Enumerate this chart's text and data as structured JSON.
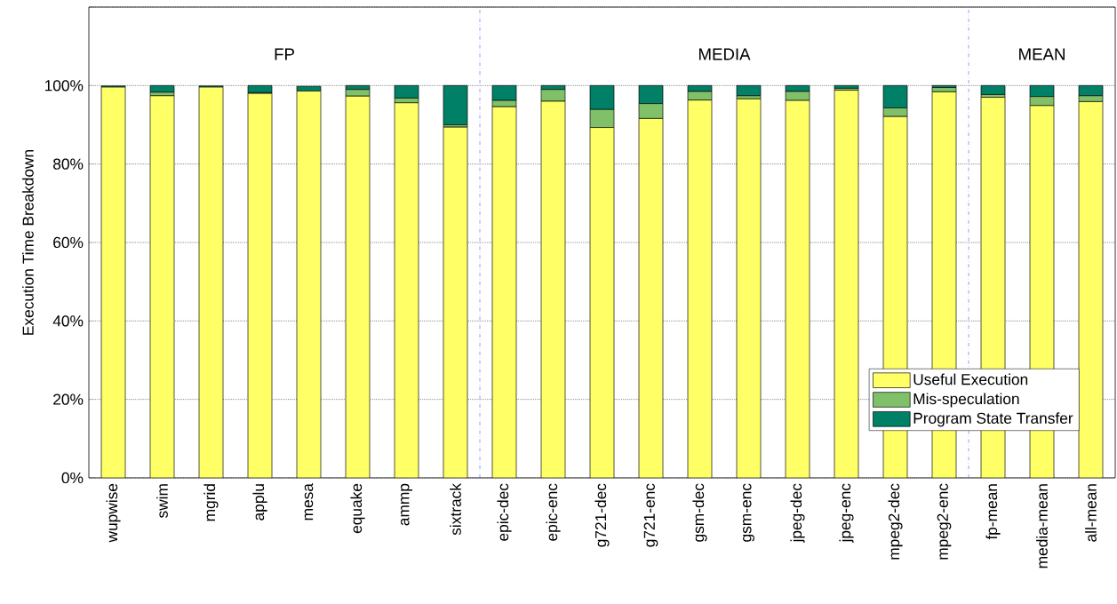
{
  "chart_data": {
    "type": "bar",
    "stacked": true,
    "ylabel": "Execution Time Breakdown",
    "categories": [
      "wupwise",
      "swim",
      "mgrid",
      "applu",
      "mesa",
      "equake",
      "ammp",
      "sixtrack",
      "epic-dec",
      "epic-enc",
      "g721-dec",
      "g721-enc",
      "gsm-dec",
      "gsm-enc",
      "jpeg-dec",
      "jpeg-enc",
      "mpeg2-dec",
      "mpeg2-enc",
      "fp-mean",
      "media-mean",
      "all-mean"
    ],
    "series": [
      {
        "name": "Useful Execution",
        "color": "#ffff66",
        "values": [
          99.6,
          97.4,
          99.6,
          98.0,
          98.6,
          97.3,
          95.6,
          89.4,
          94.6,
          96.0,
          89.3,
          91.6,
          96.3,
          96.6,
          96.2,
          98.8,
          92.1,
          98.4,
          97.0,
          94.9,
          95.9
        ]
      },
      {
        "name": "Mis-speculation",
        "color": "#80c068",
        "values": [
          null,
          0.9,
          null,
          0.2,
          null,
          1.7,
          1.2,
          0.6,
          1.6,
          3.0,
          4.6,
          3.8,
          2.2,
          0.8,
          2.3,
          0.5,
          2.2,
          1.1,
          0.7,
          2.3,
          1.5
        ]
      },
      {
        "name": "Program State Transfer",
        "color": "#008066",
        "values": [
          0.3,
          1.7,
          0.3,
          1.8,
          1.2,
          1.0,
          3.2,
          10.0,
          3.8,
          1.0,
          6.1,
          4.6,
          1.5,
          2.6,
          1.5,
          0.7,
          5.7,
          0.5,
          2.3,
          2.8,
          2.6
        ]
      }
    ],
    "ylim": [
      0,
      120
    ],
    "yticks": [
      {
        "value": 0,
        "label": "0%"
      },
      {
        "value": 20,
        "label": "20%"
      },
      {
        "value": 40,
        "label": "40%"
      },
      {
        "value": 60,
        "label": "60%"
      },
      {
        "value": 80,
        "label": "80%"
      },
      {
        "value": 100,
        "label": "100%"
      },
      {
        "value": 120,
        "label": null
      }
    ],
    "grid": "y",
    "legend": "bottom right",
    "annotations": [
      "FP",
      "MEDIA",
      "MEAN"
    ]
  }
}
